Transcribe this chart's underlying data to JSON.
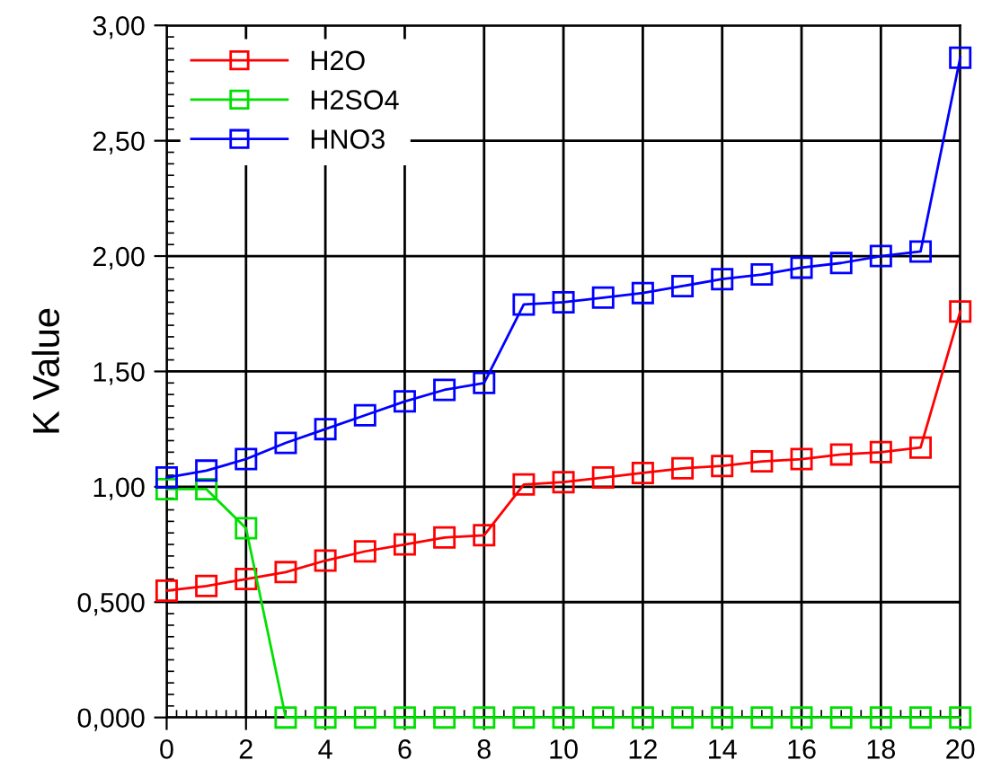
{
  "chart_data": {
    "type": "line",
    "ylabel": "K Value",
    "marker": "square",
    "grid": true,
    "legend": "top left",
    "x": [
      0,
      1,
      2,
      3,
      4,
      5,
      6,
      7,
      8,
      9,
      10,
      11,
      12,
      13,
      14,
      15,
      16,
      17,
      18,
      19,
      20
    ],
    "xlim": [
      0,
      20
    ],
    "xticks": [
      0,
      2,
      4,
      6,
      8,
      10,
      12,
      14,
      16,
      18,
      20
    ],
    "ylim": [
      0,
      3
    ],
    "yticks": [
      {
        "value": 0,
        "label": "0,000"
      },
      {
        "value": 0.5,
        "label": "0,500"
      },
      {
        "value": 1,
        "label": "1,00"
      },
      {
        "value": 1.5,
        "label": "1,50"
      },
      {
        "value": 2,
        "label": "2,00"
      },
      {
        "value": 2.5,
        "label": "2,50"
      },
      {
        "value": 3,
        "label": "3,00"
      }
    ],
    "series": [
      {
        "name": "H2O",
        "color": "#ff0000",
        "values": [
          0.55,
          0.57,
          0.6,
          0.63,
          0.68,
          0.72,
          0.75,
          0.78,
          0.79,
          1.01,
          1.02,
          1.04,
          1.06,
          1.08,
          1.09,
          1.11,
          1.12,
          1.14,
          1.15,
          1.17,
          1.76
        ]
      },
      {
        "name": "H2SO4",
        "color": "#00e000",
        "values": [
          0.99,
          0.99,
          0.82,
          0,
          0,
          0,
          0,
          0,
          0,
          0,
          0,
          0,
          0,
          0,
          0,
          0,
          0,
          0,
          0,
          0,
          0
        ]
      },
      {
        "name": "HNO3",
        "color": "#0000ff",
        "values": [
          1.04,
          1.07,
          1.12,
          1.19,
          1.25,
          1.31,
          1.37,
          1.42,
          1.45,
          1.79,
          1.8,
          1.82,
          1.84,
          1.87,
          1.9,
          1.92,
          1.95,
          1.97,
          2.0,
          2.02,
          2.86
        ]
      }
    ]
  }
}
